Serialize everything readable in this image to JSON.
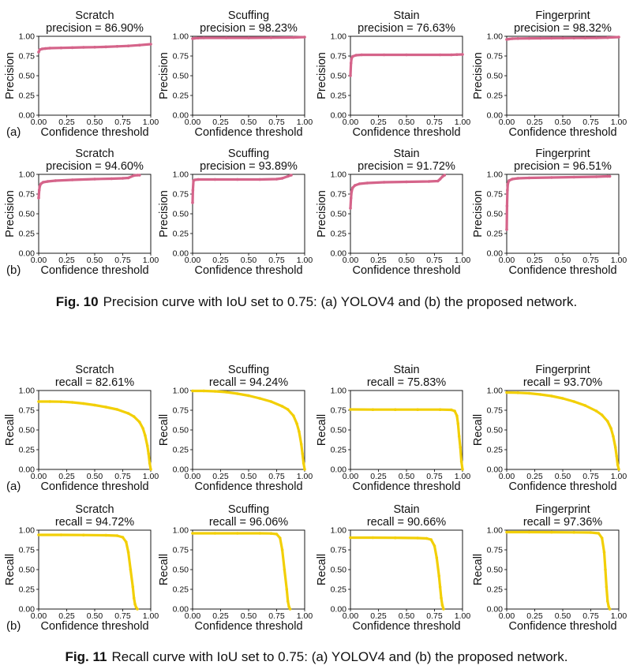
{
  "captions": {
    "fig10_label": "Fig. 10",
    "fig10_text": "Precision curve with IoU set to 0.75: (a) YOLOV4 and (b) the proposed network.",
    "fig11_label": "Fig. 11",
    "fig11_text": "Recall curve with IoU set to 0.75: (a) YOLOV4 and (b) the proposed network."
  },
  "colors": {
    "precision": "#d5648a",
    "recall": "#f2cf06",
    "axis": "#000000"
  },
  "common": {
    "xlabel": "Confidence threshold",
    "xlim": [
      0,
      1
    ],
    "ylim": [
      0,
      1
    ],
    "xticks": [
      "0.00",
      "0.25",
      "0.50",
      "0.75",
      "1.00"
    ],
    "yticks": [
      "0.00",
      "0.25",
      "0.50",
      "0.75",
      "1.00"
    ]
  },
  "chart_data": [
    {
      "type": "line",
      "group": "precision",
      "row": 0,
      "row_label": "(a)",
      "title": "Scratch",
      "subtitle": "precision = 86.90%",
      "ylabel": "Precision",
      "x": [
        0,
        0.01,
        0.03,
        0.06,
        0.1,
        0.2,
        0.3,
        0.4,
        0.5,
        0.6,
        0.7,
        0.8,
        0.9,
        1.0
      ],
      "y": [
        0.8,
        0.83,
        0.84,
        0.845,
        0.85,
        0.853,
        0.856,
        0.86,
        0.862,
        0.866,
        0.872,
        0.878,
        0.888,
        0.9
      ]
    },
    {
      "type": "line",
      "group": "precision",
      "row": 0,
      "row_label": "",
      "title": "Scuffing",
      "subtitle": "precision = 98.23%",
      "ylabel": "Precision",
      "x": [
        0,
        0.02,
        0.05,
        0.1,
        0.3,
        0.5,
        0.7,
        0.9,
        1.0
      ],
      "y": [
        0.97,
        0.975,
        0.978,
        0.98,
        0.98,
        0.98,
        0.982,
        0.985,
        0.99
      ]
    },
    {
      "type": "line",
      "group": "precision",
      "row": 0,
      "row_label": "",
      "title": "Stain",
      "subtitle": "precision = 76.63%",
      "ylabel": "Precision",
      "x": [
        0,
        0.005,
        0.01,
        0.02,
        0.05,
        0.1,
        0.3,
        0.5,
        0.8,
        0.9,
        0.95,
        1.0
      ],
      "y": [
        0.5,
        0.66,
        0.72,
        0.745,
        0.76,
        0.765,
        0.765,
        0.765,
        0.765,
        0.765,
        0.768,
        0.77
      ]
    },
    {
      "type": "line",
      "group": "precision",
      "row": 0,
      "row_label": "",
      "title": "Fingerprint",
      "subtitle": "precision = 98.32%",
      "ylabel": "Precision",
      "x": [
        0,
        0.02,
        0.05,
        0.1,
        0.2,
        0.3,
        0.4,
        0.5,
        0.6,
        0.7,
        0.8,
        0.9,
        1.0
      ],
      "y": [
        0.96,
        0.965,
        0.97,
        0.972,
        0.974,
        0.975,
        0.976,
        0.977,
        0.978,
        0.979,
        0.98,
        0.983,
        0.99
      ]
    },
    {
      "type": "line",
      "group": "precision",
      "row": 1,
      "row_label": "(b)",
      "title": "Scratch",
      "subtitle": "precision = 94.60%",
      "ylabel": "Precision",
      "x": [
        0,
        0.005,
        0.01,
        0.02,
        0.04,
        0.08,
        0.15,
        0.3,
        0.5,
        0.65,
        0.75,
        0.8,
        0.85,
        0.88,
        0.9
      ],
      "y": [
        0.7,
        0.8,
        0.85,
        0.88,
        0.9,
        0.91,
        0.92,
        0.93,
        0.94,
        0.945,
        0.95,
        0.955,
        0.985,
        0.99,
        0.99
      ]
    },
    {
      "type": "line",
      "group": "precision",
      "row": 1,
      "row_label": "",
      "title": "Scuffing",
      "subtitle": "precision = 93.89%",
      "ylabel": "Precision",
      "x": [
        0,
        0.003,
        0.008,
        0.02,
        0.05,
        0.2,
        0.4,
        0.6,
        0.75,
        0.8,
        0.85,
        0.88
      ],
      "y": [
        0.64,
        0.8,
        0.92,
        0.93,
        0.935,
        0.935,
        0.935,
        0.935,
        0.94,
        0.95,
        0.975,
        0.99
      ]
    },
    {
      "type": "line",
      "group": "precision",
      "row": 1,
      "row_label": "",
      "title": "Stain",
      "subtitle": "precision = 91.72%",
      "ylabel": "Precision",
      "x": [
        0,
        0.005,
        0.01,
        0.02,
        0.04,
        0.08,
        0.15,
        0.3,
        0.5,
        0.7,
        0.78,
        0.8,
        0.82,
        0.84
      ],
      "y": [
        0.57,
        0.7,
        0.78,
        0.83,
        0.86,
        0.88,
        0.89,
        0.9,
        0.905,
        0.91,
        0.915,
        0.94,
        0.97,
        0.99
      ]
    },
    {
      "type": "line",
      "group": "precision",
      "row": 1,
      "row_label": "",
      "title": "Fingerprint",
      "subtitle": "precision = 96.51%",
      "ylabel": "Precision",
      "x": [
        0,
        0.003,
        0.006,
        0.01,
        0.02,
        0.05,
        0.1,
        0.2,
        0.4,
        0.6,
        0.8,
        0.9,
        0.92
      ],
      "y": [
        0.3,
        0.6,
        0.8,
        0.88,
        0.92,
        0.94,
        0.95,
        0.955,
        0.96,
        0.965,
        0.97,
        0.975,
        0.975
      ]
    },
    {
      "type": "line",
      "group": "recall",
      "row": 0,
      "row_label": "(a)",
      "title": "Scratch",
      "subtitle": "recall = 82.61%",
      "ylabel": "Recall",
      "x": [
        0,
        0.1,
        0.2,
        0.3,
        0.4,
        0.5,
        0.6,
        0.7,
        0.8,
        0.85,
        0.9,
        0.93,
        0.95,
        0.97,
        0.98,
        0.99,
        1.0
      ],
      "y": [
        0.86,
        0.86,
        0.858,
        0.85,
        0.835,
        0.815,
        0.79,
        0.76,
        0.71,
        0.67,
        0.6,
        0.52,
        0.43,
        0.3,
        0.2,
        0.08,
        0
      ]
    },
    {
      "type": "line",
      "group": "recall",
      "row": 0,
      "row_label": "",
      "title": "Scuffing",
      "subtitle": "recall = 94.24%",
      "ylabel": "Recall",
      "x": [
        0,
        0.1,
        0.2,
        0.3,
        0.4,
        0.5,
        0.6,
        0.7,
        0.8,
        0.85,
        0.9,
        0.93,
        0.95,
        0.97,
        0.98,
        0.99,
        1.0
      ],
      "y": [
        0.995,
        0.995,
        0.99,
        0.98,
        0.96,
        0.935,
        0.9,
        0.86,
        0.8,
        0.76,
        0.68,
        0.58,
        0.48,
        0.32,
        0.2,
        0.08,
        0
      ]
    },
    {
      "type": "line",
      "group": "recall",
      "row": 0,
      "row_label": "",
      "title": "Stain",
      "subtitle": "recall = 75.83%",
      "ylabel": "Recall",
      "x": [
        0,
        0.2,
        0.4,
        0.6,
        0.8,
        0.9,
        0.93,
        0.95,
        0.96,
        0.97,
        0.98,
        0.99,
        1.0
      ],
      "y": [
        0.76,
        0.758,
        0.758,
        0.758,
        0.758,
        0.755,
        0.74,
        0.68,
        0.58,
        0.42,
        0.28,
        0.1,
        0
      ]
    },
    {
      "type": "line",
      "group": "recall",
      "row": 0,
      "row_label": "",
      "title": "Fingerprint",
      "subtitle": "recall = 93.70%",
      "ylabel": "Recall",
      "x": [
        0,
        0.1,
        0.2,
        0.3,
        0.4,
        0.5,
        0.6,
        0.7,
        0.8,
        0.85,
        0.9,
        0.93,
        0.95,
        0.97,
        0.98,
        0.99,
        1.0
      ],
      "y": [
        0.975,
        0.972,
        0.965,
        0.95,
        0.93,
        0.9,
        0.86,
        0.81,
        0.74,
        0.69,
        0.61,
        0.52,
        0.42,
        0.28,
        0.17,
        0.06,
        0
      ]
    },
    {
      "type": "line",
      "group": "recall",
      "row": 1,
      "row_label": "(b)",
      "title": "Scratch",
      "subtitle": "recall = 94.72%",
      "ylabel": "Recall",
      "x": [
        0,
        0.2,
        0.4,
        0.6,
        0.7,
        0.75,
        0.78,
        0.8,
        0.82,
        0.84,
        0.85,
        0.86,
        0.87,
        0.88
      ],
      "y": [
        0.94,
        0.94,
        0.938,
        0.935,
        0.93,
        0.91,
        0.85,
        0.72,
        0.5,
        0.28,
        0.14,
        0.06,
        0.02,
        0
      ]
    },
    {
      "type": "line",
      "group": "recall",
      "row": 1,
      "row_label": "",
      "title": "Scuffing",
      "subtitle": "recall = 96.06%",
      "ylabel": "Recall",
      "x": [
        0,
        0.2,
        0.4,
        0.6,
        0.7,
        0.75,
        0.78,
        0.8,
        0.82,
        0.84,
        0.85,
        0.86,
        0.87
      ],
      "y": [
        0.96,
        0.96,
        0.96,
        0.96,
        0.958,
        0.95,
        0.9,
        0.75,
        0.5,
        0.25,
        0.1,
        0.03,
        0
      ]
    },
    {
      "type": "line",
      "group": "recall",
      "row": 1,
      "row_label": "",
      "title": "Stain",
      "subtitle": "recall = 90.66%",
      "ylabel": "Recall",
      "x": [
        0,
        0.2,
        0.4,
        0.6,
        0.68,
        0.72,
        0.75,
        0.77,
        0.79,
        0.8,
        0.81,
        0.82,
        0.83
      ],
      "y": [
        0.905,
        0.905,
        0.903,
        0.9,
        0.895,
        0.88,
        0.8,
        0.65,
        0.42,
        0.28,
        0.14,
        0.05,
        0
      ]
    },
    {
      "type": "line",
      "group": "recall",
      "row": 1,
      "row_label": "",
      "title": "Fingerprint",
      "subtitle": "recall = 97.36%",
      "ylabel": "Recall",
      "x": [
        0,
        0.2,
        0.4,
        0.6,
        0.75,
        0.82,
        0.85,
        0.87,
        0.88,
        0.89,
        0.9,
        0.91,
        0.92
      ],
      "y": [
        0.975,
        0.975,
        0.974,
        0.972,
        0.97,
        0.96,
        0.9,
        0.72,
        0.5,
        0.28,
        0.1,
        0.03,
        0
      ]
    }
  ]
}
